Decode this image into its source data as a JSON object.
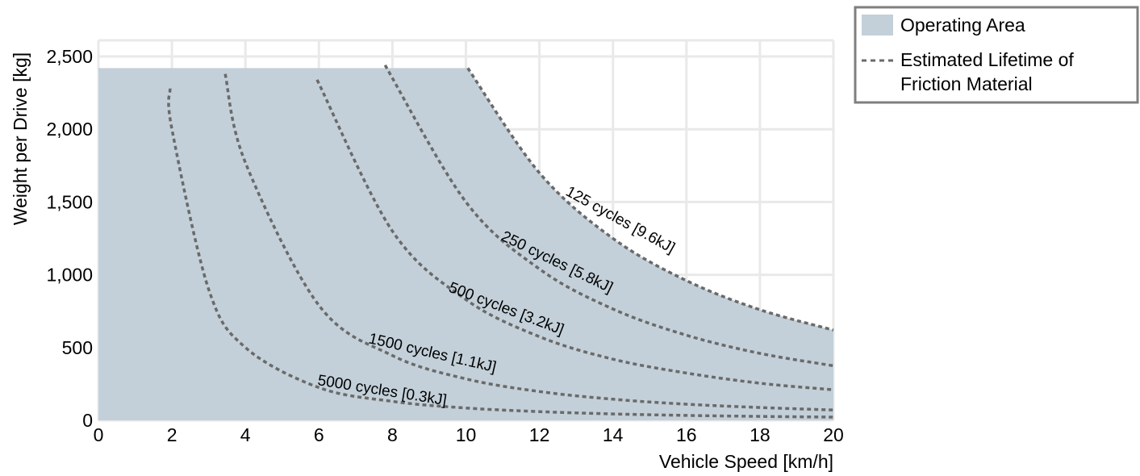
{
  "chart_data": {
    "type": "area",
    "xlabel": "Vehicle Speed [km/h]",
    "ylabel": "Weight per Drive [kg]",
    "xlim": [
      0,
      20
    ],
    "ylim": [
      0,
      2500
    ],
    "x_ticks": [
      "0",
      "2",
      "4",
      "6",
      "8",
      "10",
      "12",
      "14",
      "16",
      "18",
      "20"
    ],
    "y_ticks": [
      "0",
      "500",
      "1,000",
      "1,500",
      "2,000",
      "2,500"
    ],
    "grid": true,
    "legend_position": "top-right outside",
    "legend": {
      "area_label": "Operating Area",
      "line_label_1": "Estimated Lifetime of",
      "line_label_2": "Friction Material"
    },
    "operating_area": {
      "max_weight": 2420,
      "boundary": "125 cycles [9.6kJ] curve",
      "x": [
        0,
        10.05,
        12,
        14,
        16,
        18,
        20
      ],
      "y": [
        2420,
        2420,
        1700,
        1250,
        960,
        760,
        620
      ]
    },
    "series": [
      {
        "label": "125 cycles [9.6kJ]",
        "x": [
          10.05,
          12,
          14,
          16,
          18,
          20
        ],
        "y": [
          2420,
          1700,
          1250,
          960,
          760,
          620
        ]
      },
      {
        "label": "250 cycles [5.8kJ]",
        "x": [
          7.8,
          10,
          12,
          14,
          16,
          18,
          20
        ],
        "y": [
          2440,
          1500,
          1040,
          765,
          585,
          460,
          375
        ]
      },
      {
        "label": "500 cycles [3.2kJ]",
        "x": [
          5.95,
          8,
          10,
          12,
          14,
          16,
          18,
          20
        ],
        "y": [
          2340,
          1300,
          830,
          575,
          420,
          325,
          255,
          210
        ]
      },
      {
        "label": "1500 cycles [1.1kJ]",
        "x": [
          3.45,
          4,
          6,
          8,
          10,
          12,
          14,
          16,
          18,
          20
        ],
        "y": [
          2380,
          1770,
          790,
          445,
          285,
          198,
          145,
          111,
          88,
          71
        ]
      },
      {
        "label": "5000 cycles [0.3kJ]",
        "x": [
          1.95,
          2,
          3,
          4,
          6,
          8,
          10,
          12,
          14,
          16,
          18,
          20
        ],
        "y": [
          2280,
          2000,
          900,
          500,
          225,
          130,
          85,
          60,
          44,
          34,
          27,
          22
        ]
      }
    ],
    "colors": {
      "area": "#c3d0d9",
      "grid": "#e9e9e9",
      "curve": "#6a6a6a",
      "legend_border": "#7f7f7f"
    }
  }
}
